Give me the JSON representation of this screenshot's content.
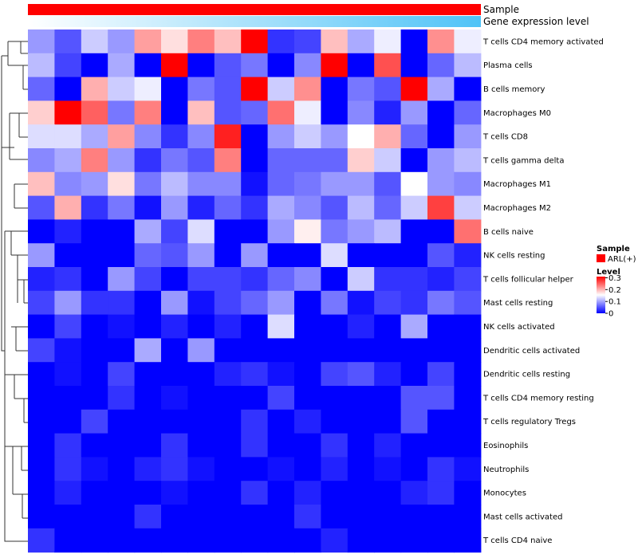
{
  "chart_data": {
    "type": "heatmap",
    "annotations": {
      "sample_label": "Sample",
      "gene_label": "Gene expression level"
    },
    "legend": {
      "sample_title": "Sample",
      "sample_entry": "ARL(+)",
      "sample_color": "#ff0000",
      "level_title": "Level",
      "ticks": [
        "0.3",
        "0.2",
        "0.1",
        "0"
      ],
      "tick_values": [
        0.3,
        0.2,
        0.1,
        0
      ]
    },
    "colors": {
      "low": "#0000ff",
      "mid": "#ffffff",
      "high": "#ff0000",
      "mid_value": 0.15,
      "max_value": 0.31,
      "gene_gradient_start": "#ffffff",
      "gene_gradient_end": "#4fc3f7"
    },
    "rows": [
      "T cells CD4 memory activated",
      "Plasma cells",
      "B cells memory",
      "Macrophages M0",
      "T cells CD8",
      "T cells gamma delta",
      "Macrophages M1",
      "Macrophages M2",
      "B cells naive",
      "NK cells resting",
      "T cells follicular helper",
      "Mast cells resting",
      "NK cells activated",
      "Dendritic cells activated",
      "Dendritic cells resting",
      "T cells CD4 memory resting",
      "T cells regulatory  Tregs",
      "Eosinophils",
      "Neutrophils",
      "Monocytes",
      "Mast cells activated",
      "T cells CD4 naive"
    ],
    "values": [
      [
        0.09,
        0.05,
        0.12,
        0.09,
        0.21,
        0.17,
        0.23,
        0.19,
        0.31,
        0.03,
        0.04,
        0.19,
        0.1,
        0.14,
        0.0,
        0.22,
        0.14
      ],
      [
        0.11,
        0.04,
        0.0,
        0.1,
        0.0,
        0.31,
        0.0,
        0.05,
        0.07,
        0.0,
        0.08,
        0.31,
        0.0,
        0.26,
        0.0,
        0.06,
        0.11
      ],
      [
        0.06,
        0.0,
        0.2,
        0.12,
        0.14,
        0.0,
        0.07,
        0.05,
        0.31,
        0.12,
        0.22,
        0.0,
        0.07,
        0.05,
        0.31,
        0.1,
        0.0
      ],
      [
        0.18,
        0.31,
        0.25,
        0.07,
        0.23,
        0.0,
        0.19,
        0.05,
        0.06,
        0.24,
        0.14,
        0.0,
        0.08,
        0.02,
        0.09,
        0.0,
        0.06
      ],
      [
        0.13,
        0.13,
        0.1,
        0.21,
        0.08,
        0.03,
        0.08,
        0.29,
        0.0,
        0.09,
        0.12,
        0.09,
        0.15,
        0.2,
        0.06,
        0.0,
        0.09
      ],
      [
        0.08,
        0.1,
        0.23,
        0.09,
        0.03,
        0.07,
        0.05,
        0.23,
        0.0,
        0.06,
        0.06,
        0.06,
        0.18,
        0.12,
        0.0,
        0.09,
        0.11
      ],
      [
        0.19,
        0.08,
        0.09,
        0.17,
        0.07,
        0.11,
        0.08,
        0.08,
        0.01,
        0.06,
        0.07,
        0.09,
        0.09,
        0.05,
        0.15,
        0.09,
        0.08
      ],
      [
        0.05,
        0.2,
        0.03,
        0.07,
        0.01,
        0.09,
        0.02,
        0.06,
        0.03,
        0.1,
        0.08,
        0.05,
        0.11,
        0.06,
        0.12,
        0.27,
        0.12
      ],
      [
        0.0,
        0.02,
        0.0,
        0.0,
        0.1,
        0.04,
        0.13,
        0.0,
        0.0,
        0.09,
        0.16,
        0.07,
        0.09,
        0.11,
        0.0,
        0.0,
        0.24
      ],
      [
        0.09,
        0.0,
        0.0,
        0.0,
        0.06,
        0.05,
        0.09,
        0.0,
        0.09,
        0.0,
        0.0,
        0.13,
        0.0,
        0.0,
        0.0,
        0.05,
        0.02
      ],
      [
        0.02,
        0.03,
        0.0,
        0.09,
        0.04,
        0.0,
        0.04,
        0.04,
        0.03,
        0.06,
        0.08,
        0.0,
        0.12,
        0.03,
        0.03,
        0.02,
        0.04
      ],
      [
        0.04,
        0.09,
        0.03,
        0.03,
        0.0,
        0.09,
        0.01,
        0.04,
        0.06,
        0.09,
        0.0,
        0.07,
        0.01,
        0.04,
        0.03,
        0.07,
        0.05
      ],
      [
        0.0,
        0.04,
        0.0,
        0.01,
        0.0,
        0.02,
        0.0,
        0.02,
        0.0,
        0.13,
        0.0,
        0.0,
        0.02,
        0.0,
        0.1,
        0.0,
        0.0
      ],
      [
        0.04,
        0.01,
        0.0,
        0.0,
        0.1,
        0.0,
        0.09,
        0.0,
        0.0,
        0.0,
        0.0,
        0.0,
        0.0,
        0.0,
        0.0,
        0.0,
        0.0
      ],
      [
        0.0,
        0.01,
        0.0,
        0.04,
        0.0,
        0.0,
        0.0,
        0.02,
        0.03,
        0.01,
        0.0,
        0.04,
        0.05,
        0.02,
        0.0,
        0.04,
        0.0
      ],
      [
        0.0,
        0.0,
        0.0,
        0.03,
        0.0,
        0.01,
        0.0,
        0.0,
        0.0,
        0.04,
        0.0,
        0.0,
        0.0,
        0.0,
        0.05,
        0.05,
        0.0
      ],
      [
        0.0,
        0.0,
        0.04,
        0.0,
        0.0,
        0.0,
        0.0,
        0.0,
        0.03,
        0.0,
        0.02,
        0.0,
        0.0,
        0.0,
        0.05,
        0.0,
        0.0
      ],
      [
        0.0,
        0.03,
        0.0,
        0.0,
        0.0,
        0.03,
        0.0,
        0.0,
        0.03,
        0.0,
        0.0,
        0.03,
        0.0,
        0.02,
        0.0,
        0.0,
        0.0
      ],
      [
        0.0,
        0.03,
        0.01,
        0.0,
        0.02,
        0.03,
        0.01,
        0.0,
        0.0,
        0.01,
        0.0,
        0.02,
        0.0,
        0.01,
        0.0,
        0.03,
        0.01
      ],
      [
        0.0,
        0.02,
        0.0,
        0.0,
        0.0,
        0.01,
        0.0,
        0.0,
        0.03,
        0.0,
        0.02,
        0.0,
        0.0,
        0.0,
        0.02,
        0.03,
        0.0
      ],
      [
        0.0,
        0.0,
        0.0,
        0.0,
        0.03,
        0.0,
        0.0,
        0.0,
        0.0,
        0.0,
        0.03,
        0.0,
        0.0,
        0.0,
        0.0,
        0.0,
        0.0
      ],
      [
        0.03,
        0.0,
        0.0,
        0.0,
        0.0,
        0.0,
        0.0,
        0.0,
        0.0,
        0.0,
        0.0,
        0.02,
        0.0,
        0.0,
        0.0,
        0.0,
        0.0
      ]
    ]
  }
}
